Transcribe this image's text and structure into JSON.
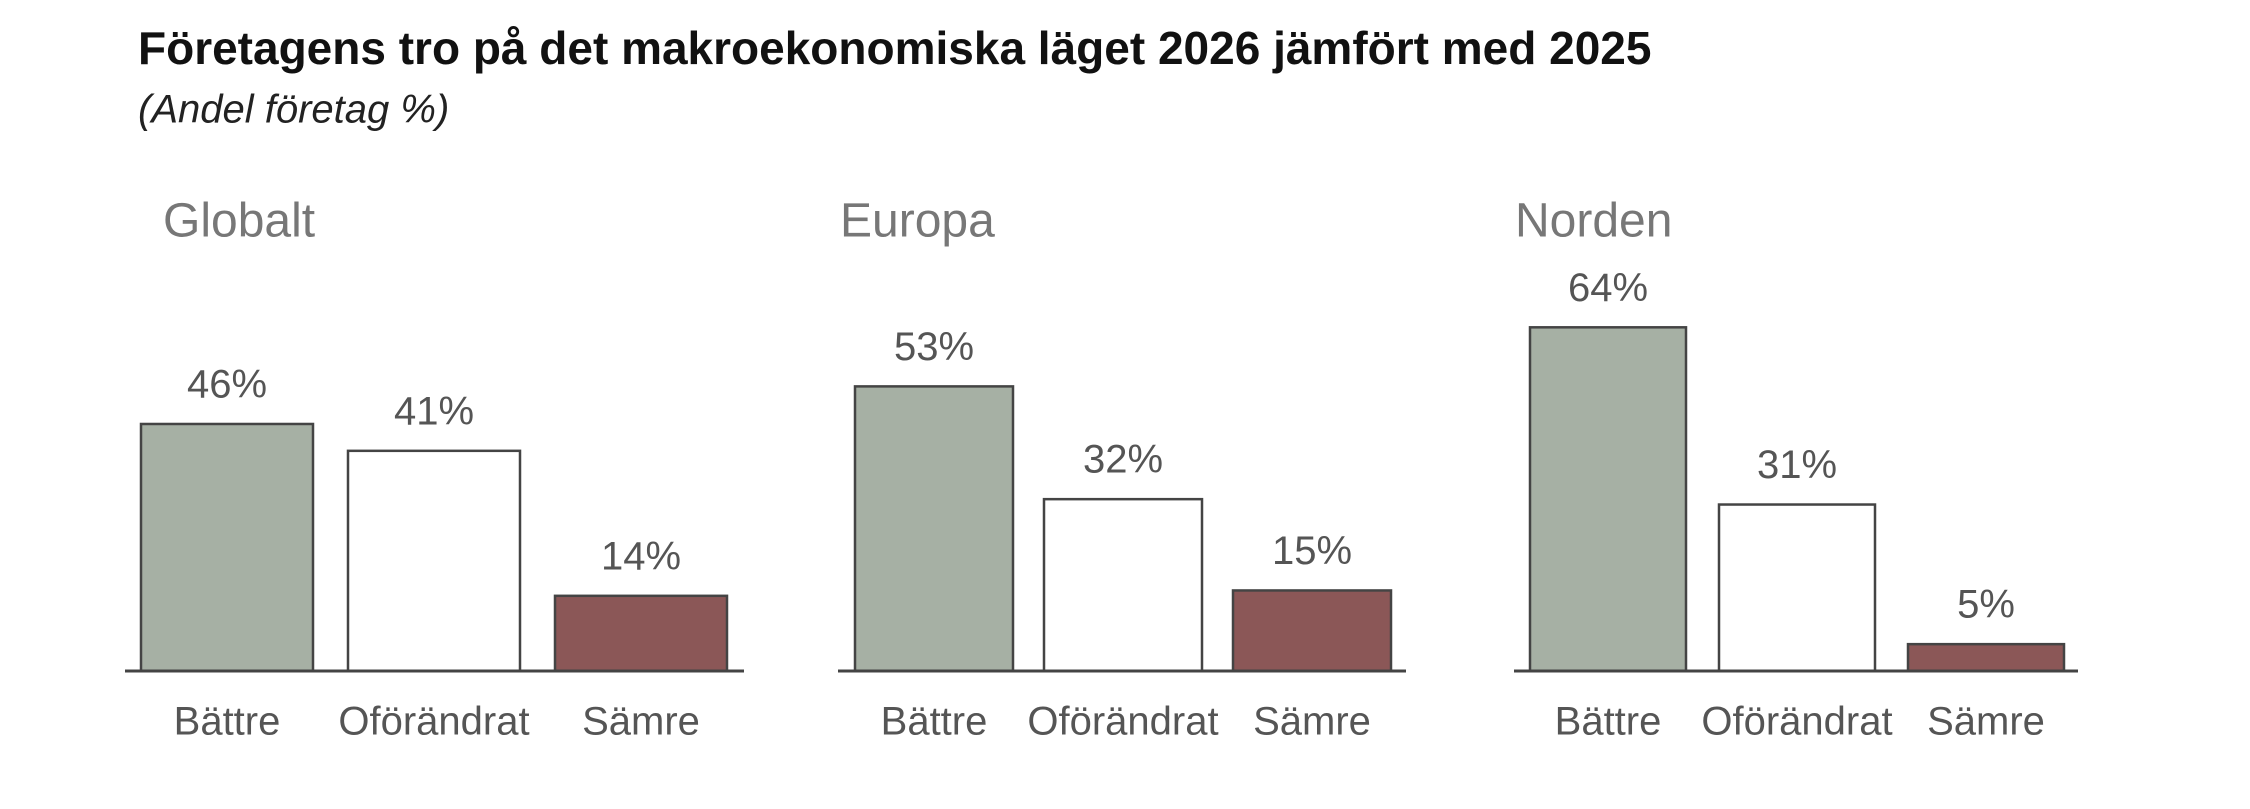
{
  "title": "Företagens tro på det makroekonomiska läget 2026 jämfört med 2025",
  "subtitle": "(Andel företag %)",
  "chart_data": [
    {
      "type": "bar",
      "title": "Globalt",
      "categories": [
        "Bättre",
        "Oförändrat",
        "Sämre"
      ],
      "values": [
        46,
        41,
        14
      ],
      "value_labels": [
        "46%",
        "41%",
        "14%"
      ],
      "colors": [
        "#a6b0a4",
        "#ffffff",
        "#8b5757"
      ]
    },
    {
      "type": "bar",
      "title": "Europa",
      "categories": [
        "Bättre",
        "Oförändrat",
        "Sämre"
      ],
      "values": [
        53,
        32,
        15
      ],
      "value_labels": [
        "53%",
        "32%",
        "15%"
      ],
      "colors": [
        "#a6b0a4",
        "#ffffff",
        "#8b5757"
      ]
    },
    {
      "type": "bar",
      "title": "Norden",
      "categories": [
        "Bättre",
        "Oförändrat",
        "Sämre"
      ],
      "values": [
        64,
        31,
        5
      ],
      "value_labels": [
        "64%",
        "31%",
        "5%"
      ],
      "colors": [
        "#a6b0a4",
        "#ffffff",
        "#8b5757"
      ]
    }
  ]
}
